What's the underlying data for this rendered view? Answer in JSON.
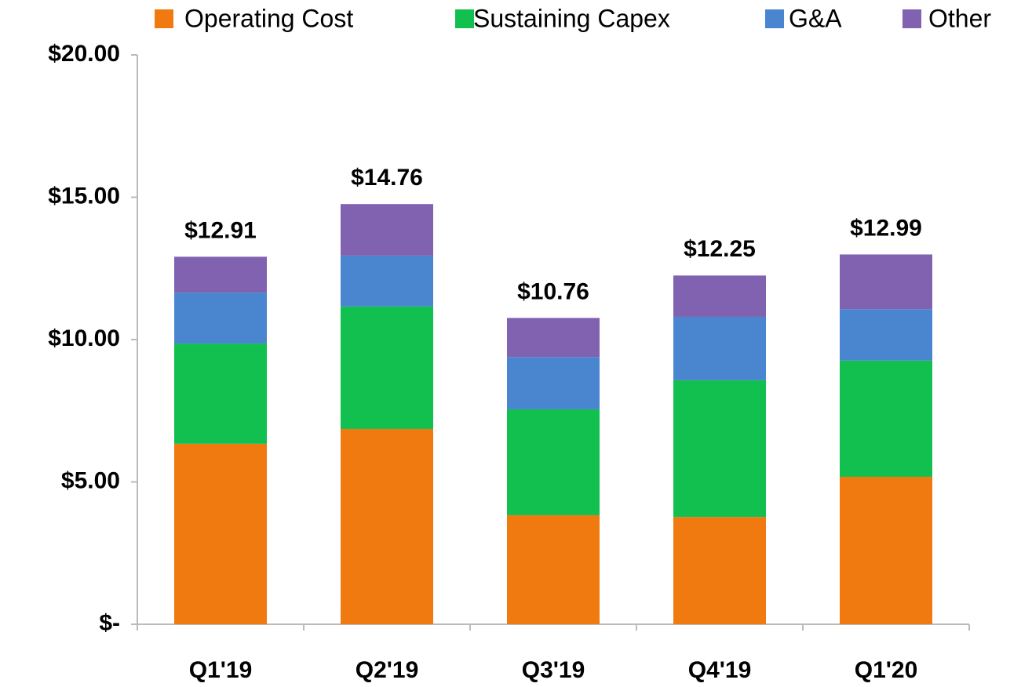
{
  "chart_data": {
    "type": "stacked_bar",
    "categories": [
      "Q1'19",
      "Q2'19",
      "Q3'19",
      "Q4'19",
      "Q1'20"
    ],
    "series": [
      {
        "name": "Operating Cost",
        "color": "#f07a10",
        "values": [
          6.34,
          6.86,
          3.83,
          3.77,
          5.18
        ]
      },
      {
        "name": "Sustaining Capex",
        "color": "#12c050",
        "values": [
          3.52,
          4.3,
          3.72,
          4.8,
          4.08
        ]
      },
      {
        "name": "G&A",
        "color": "#4a86d0",
        "values": [
          1.79,
          1.79,
          1.84,
          2.23,
          1.81
        ]
      },
      {
        "name": "Other",
        "color": "#8062b0",
        "values": [
          1.26,
          1.81,
          1.37,
          1.45,
          1.92
        ]
      }
    ],
    "totals": [
      12.91,
      14.76,
      10.76,
      12.25,
      12.99
    ],
    "total_labels": [
      "$12.91",
      "$14.76",
      "$10.76",
      "$12.25",
      "$12.99"
    ],
    "ylim": [
      0,
      20
    ],
    "yticks": [
      {
        "value": 0,
        "label": "$-"
      },
      {
        "value": 5,
        "label": "$5.00"
      },
      {
        "value": 10,
        "label": "$10.00"
      },
      {
        "value": 15,
        "label": "$15.00"
      },
      {
        "value": 20,
        "label": "$20.00"
      }
    ],
    "grid": false,
    "legend": "top"
  }
}
